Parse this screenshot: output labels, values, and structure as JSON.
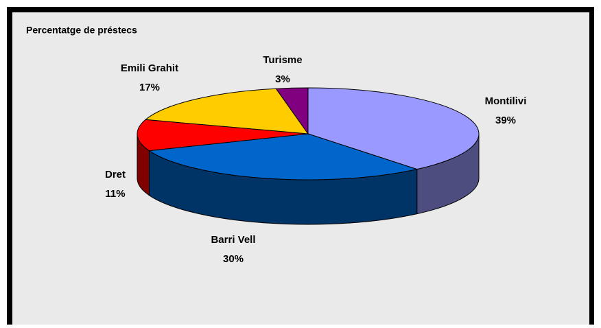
{
  "chart_data": {
    "type": "pie3d",
    "title": "Percentatge de préstecs",
    "categories": [
      "Montilivi",
      "Barri Vell",
      "Dret",
      "Emili Grahit",
      "Turisme"
    ],
    "values": [
      39,
      30,
      11,
      17,
      3
    ],
    "value_labels": [
      "39%",
      "30%",
      "11%",
      "17%",
      "3%"
    ],
    "colors": [
      "#9999ff",
      "#0066cc",
      "#ff0000",
      "#ffcc00",
      "#800080"
    ],
    "side_colors": [
      "#4d4d80",
      "#003366",
      "#800000",
      "#806600",
      "#400040"
    ]
  }
}
